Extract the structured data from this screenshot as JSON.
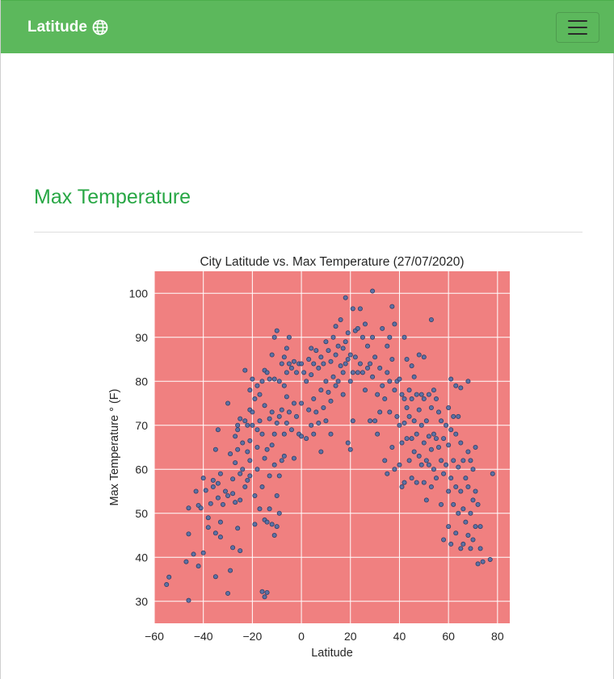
{
  "navbar": {
    "brand": "Latitude",
    "brand_icon": "globe-icon",
    "menu_icon": "hamburger-menu-icon",
    "background": "#5cb85c"
  },
  "page": {
    "heading": "Max Temperature",
    "heading_color": "#28a745"
  },
  "chart_data": {
    "type": "scatter",
    "title": "City Latitude vs. Max Temperature (27/07/2020)",
    "xlabel": "Latitude",
    "ylabel": "Max Temperature $^\\circ$ (F)",
    "ylabel_display": "Max Temperature  ° (F)",
    "xlim": [
      -60,
      85
    ],
    "ylim": [
      25,
      105
    ],
    "xticks": [
      -60,
      -40,
      -20,
      0,
      20,
      40,
      60,
      80
    ],
    "xtick_labels": [
      "−60",
      "−40",
      "−20",
      "0",
      "20",
      "40",
      "60",
      "80"
    ],
    "yticks": [
      30,
      40,
      50,
      60,
      70,
      80,
      90,
      100
    ],
    "ytick_labels": [
      "30",
      "40",
      "50",
      "60",
      "70",
      "80",
      "90",
      "100"
    ],
    "grid": true,
    "plot_background": "#f08080",
    "marker_color": "#4c6fa8",
    "marker_edge": "#2f3f66",
    "points": [
      [
        -55,
        33.8
      ],
      [
        -54,
        35.5
      ],
      [
        -47,
        39
      ],
      [
        -46,
        45.3
      ],
      [
        -46,
        30.2
      ],
      [
        -46,
        51.2
      ],
      [
        -44,
        40.7
      ],
      [
        -43,
        55
      ],
      [
        -42,
        38
      ],
      [
        -42,
        51.8
      ],
      [
        -41,
        51.2
      ],
      [
        -40,
        58
      ],
      [
        -40,
        41
      ],
      [
        -39,
        55.2
      ],
      [
        -38,
        46.8
      ],
      [
        -38,
        49
      ],
      [
        -37,
        52.2
      ],
      [
        -36,
        57.5
      ],
      [
        -36,
        56
      ],
      [
        -35,
        64.5
      ],
      [
        -35,
        35.6
      ],
      [
        -35,
        45.5
      ],
      [
        -34,
        69
      ],
      [
        -34,
        56.8
      ],
      [
        -34,
        53.5
      ],
      [
        -33,
        59
      ],
      [
        -33,
        48
      ],
      [
        -33,
        44.6
      ],
      [
        -32,
        52
      ],
      [
        -31,
        55
      ],
      [
        -30,
        54
      ],
      [
        -30,
        75
      ],
      [
        -30,
        31.8
      ],
      [
        -29,
        63.5
      ],
      [
        -29,
        37
      ],
      [
        -28,
        57.8
      ],
      [
        -28,
        54.5
      ],
      [
        -28,
        42.2
      ],
      [
        -27,
        61.5
      ],
      [
        -27,
        67.5
      ],
      [
        -27,
        52.5
      ],
      [
        -26,
        70
      ],
      [
        -26,
        69
      ],
      [
        -26,
        64.5
      ],
      [
        -26,
        46.6
      ],
      [
        -25,
        71.5
      ],
      [
        -25,
        59
      ],
      [
        -25,
        53
      ],
      [
        -25,
        41.5
      ],
      [
        -24,
        66
      ],
      [
        -24,
        60
      ],
      [
        -23,
        82.5
      ],
      [
        -23,
        71
      ],
      [
        -23,
        56
      ],
      [
        -22,
        70
      ],
      [
        -22,
        64
      ],
      [
        -22,
        57.5
      ],
      [
        -21,
        78
      ],
      [
        -21,
        73.5
      ],
      [
        -21,
        66.5
      ],
      [
        -21,
        62
      ],
      [
        -21,
        58.5
      ],
      [
        -20,
        80.5
      ],
      [
        -20,
        73
      ],
      [
        -20,
        70
      ],
      [
        -19,
        76
      ],
      [
        -19,
        54
      ],
      [
        -19,
        47.5
      ],
      [
        -18,
        79
      ],
      [
        -18,
        69
      ],
      [
        -18,
        65
      ],
      [
        -18,
        60
      ],
      [
        -17,
        77
      ],
      [
        -17,
        71
      ],
      [
        -17,
        51
      ],
      [
        -16,
        80
      ],
      [
        -16,
        68
      ],
      [
        -16,
        56
      ],
      [
        -16,
        32.2
      ],
      [
        -15,
        82.5
      ],
      [
        -15,
        74.5
      ],
      [
        -15,
        62.5
      ],
      [
        -15,
        48.5
      ],
      [
        -15,
        31
      ],
      [
        -14,
        82
      ],
      [
        -14,
        64.5
      ],
      [
        -14,
        48
      ],
      [
        -14,
        32
      ],
      [
        -13,
        80.5
      ],
      [
        -13,
        71.5
      ],
      [
        -13,
        58.5
      ],
      [
        -13,
        51
      ],
      [
        -12,
        86
      ],
      [
        -12,
        73
      ],
      [
        -12,
        65.5
      ],
      [
        -12,
        47.5
      ],
      [
        -11,
        90
      ],
      [
        -11,
        80.5
      ],
      [
        -11,
        68
      ],
      [
        -11,
        61
      ],
      [
        -11,
        45
      ],
      [
        -10,
        91.5
      ],
      [
        -10,
        70.5
      ],
      [
        -10,
        54
      ],
      [
        -10,
        47
      ],
      [
        -9,
        80
      ],
      [
        -9,
        72
      ],
      [
        -9,
        58.5
      ],
      [
        -9,
        50
      ],
      [
        -8,
        84
      ],
      [
        -8,
        73.5
      ],
      [
        -8,
        62
      ],
      [
        -7,
        85.5
      ],
      [
        -7,
        79
      ],
      [
        -7,
        68
      ],
      [
        -7,
        63
      ],
      [
        -6,
        87.5
      ],
      [
        -6,
        82
      ],
      [
        -6,
        76.5
      ],
      [
        -6,
        70.5
      ],
      [
        -5,
        90
      ],
      [
        -5,
        84
      ],
      [
        -5,
        73
      ],
      [
        -4,
        83
      ],
      [
        -4,
        69
      ],
      [
        -3,
        84.5
      ],
      [
        -3,
        75
      ],
      [
        -3,
        62.5
      ],
      [
        -2,
        82
      ],
      [
        -2,
        72
      ],
      [
        -1,
        84
      ],
      [
        -1,
        68
      ],
      [
        0,
        84
      ],
      [
        0,
        75
      ],
      [
        0,
        67.5
      ],
      [
        1,
        82
      ],
      [
        2,
        80
      ],
      [
        2,
        67
      ],
      [
        3,
        85
      ],
      [
        3,
        73.5
      ],
      [
        4,
        87.5
      ],
      [
        4,
        81.5
      ],
      [
        4,
        70
      ],
      [
        5,
        84
      ],
      [
        5,
        76
      ],
      [
        5,
        68
      ],
      [
        6,
        87
      ],
      [
        6,
        73
      ],
      [
        7,
        83
      ],
      [
        7,
        70.5
      ],
      [
        8,
        85.5
      ],
      [
        8,
        78
      ],
      [
        8,
        64
      ],
      [
        9,
        84
      ],
      [
        9,
        74
      ],
      [
        10,
        89
      ],
      [
        10,
        80
      ],
      [
        10,
        71
      ],
      [
        11,
        87
      ],
      [
        11,
        77.5
      ],
      [
        12,
        84.5
      ],
      [
        12,
        75.5
      ],
      [
        12,
        68
      ],
      [
        13,
        90
      ],
      [
        13,
        81
      ],
      [
        14,
        92.5
      ],
      [
        14,
        86
      ],
      [
        14,
        79
      ],
      [
        15,
        88
      ],
      [
        15,
        80
      ],
      [
        16,
        94
      ],
      [
        16,
        83.5
      ],
      [
        17,
        87.5
      ],
      [
        17,
        82
      ],
      [
        17,
        77
      ],
      [
        18,
        99
      ],
      [
        18,
        89
      ],
      [
        18,
        84
      ],
      [
        19,
        91
      ],
      [
        19,
        85
      ],
      [
        19,
        66
      ],
      [
        20,
        86
      ],
      [
        20,
        80
      ],
      [
        20,
        64.5
      ],
      [
        21,
        96.5
      ],
      [
        21,
        82
      ],
      [
        21,
        71
      ],
      [
        22,
        91.5
      ],
      [
        22,
        85.5
      ],
      [
        23,
        92
      ],
      [
        23,
        82
      ],
      [
        24,
        96.5
      ],
      [
        24,
        84
      ],
      [
        25,
        90
      ],
      [
        25,
        82
      ],
      [
        26,
        93
      ],
      [
        26,
        78
      ],
      [
        27,
        88
      ],
      [
        27,
        83
      ],
      [
        28,
        84
      ],
      [
        28,
        71
      ],
      [
        29,
        100.5
      ],
      [
        29,
        90
      ],
      [
        29,
        81
      ],
      [
        30,
        85.5
      ],
      [
        30,
        71
      ],
      [
        31,
        77
      ],
      [
        31,
        68
      ],
      [
        32,
        83
      ],
      [
        32,
        73
      ],
      [
        33,
        92
      ],
      [
        33,
        79
      ],
      [
        34,
        76
      ],
      [
        34,
        62
      ],
      [
        35,
        88
      ],
      [
        35,
        82
      ],
      [
        35,
        59
      ],
      [
        36,
        90
      ],
      [
        36,
        80
      ],
      [
        36,
        73
      ],
      [
        37,
        97
      ],
      [
        37,
        85
      ],
      [
        37,
        65
      ],
      [
        38,
        93
      ],
      [
        38,
        78
      ],
      [
        38,
        60
      ],
      [
        39,
        80
      ],
      [
        39,
        72
      ],
      [
        40,
        80.5
      ],
      [
        40,
        70
      ],
      [
        40,
        61
      ],
      [
        41,
        77
      ],
      [
        41,
        66
      ],
      [
        41,
        56
      ],
      [
        42,
        90
      ],
      [
        42,
        76
      ],
      [
        42,
        70.5
      ],
      [
        42,
        57
      ],
      [
        43,
        85
      ],
      [
        43,
        74
      ],
      [
        43,
        67
      ],
      [
        44,
        78
      ],
      [
        44,
        72
      ],
      [
        44,
        62
      ],
      [
        45,
        83.5
      ],
      [
        45,
        76
      ],
      [
        45,
        67
      ],
      [
        45,
        58
      ],
      [
        46,
        81
      ],
      [
        46,
        71
      ],
      [
        46,
        64
      ],
      [
        47,
        77
      ],
      [
        47,
        68
      ],
      [
        47,
        57
      ],
      [
        48,
        86
      ],
      [
        48,
        73.5
      ],
      [
        48,
        63
      ],
      [
        49,
        77
      ],
      [
        49,
        70
      ],
      [
        49,
        61
      ],
      [
        50,
        85.5
      ],
      [
        50,
        76
      ],
      [
        50,
        66
      ],
      [
        50,
        57
      ],
      [
        51,
        71
      ],
      [
        51,
        62
      ],
      [
        51,
        53
      ],
      [
        52,
        77
      ],
      [
        52,
        67.5
      ],
      [
        52,
        61
      ],
      [
        53,
        94
      ],
      [
        53,
        74
      ],
      [
        53,
        64.5
      ],
      [
        53,
        56
      ],
      [
        54,
        78
      ],
      [
        54,
        68
      ],
      [
        54,
        60
      ],
      [
        55,
        76
      ],
      [
        55,
        67
      ],
      [
        55,
        58
      ],
      [
        56,
        73
      ],
      [
        56,
        65
      ],
      [
        57,
        71
      ],
      [
        57,
        62
      ],
      [
        57,
        52
      ],
      [
        58,
        67
      ],
      [
        58,
        59
      ],
      [
        58,
        44
      ],
      [
        59,
        70
      ],
      [
        59,
        61
      ],
      [
        60,
        74
      ],
      [
        60,
        65.5
      ],
      [
        60,
        55
      ],
      [
        60,
        47
      ],
      [
        61,
        80.5
      ],
      [
        61,
        69
      ],
      [
        61,
        58
      ],
      [
        61,
        43
      ],
      [
        62,
        72
      ],
      [
        62,
        62
      ],
      [
        62,
        52
      ],
      [
        63,
        79
      ],
      [
        63,
        68
      ],
      [
        63,
        56
      ],
      [
        63,
        45.5
      ],
      [
        64,
        72
      ],
      [
        64,
        60.5
      ],
      [
        64,
        50
      ],
      [
        65,
        78.5
      ],
      [
        65,
        66
      ],
      [
        65,
        55
      ],
      [
        65,
        42
      ],
      [
        66,
        62
      ],
      [
        66,
        51
      ],
      [
        66,
        43
      ],
      [
        67,
        58
      ],
      [
        67,
        48
      ],
      [
        68,
        80
      ],
      [
        68,
        64
      ],
      [
        68,
        56
      ],
      [
        68,
        45
      ],
      [
        69,
        62
      ],
      [
        69,
        50
      ],
      [
        69,
        42
      ],
      [
        70,
        60
      ],
      [
        70,
        53
      ],
      [
        70,
        44
      ],
      [
        71,
        65
      ],
      [
        71,
        55
      ],
      [
        71,
        47
      ],
      [
        72,
        52
      ],
      [
        72,
        38.5
      ],
      [
        73,
        47
      ],
      [
        73,
        42
      ],
      [
        74,
        39
      ],
      [
        77,
        39.5
      ],
      [
        78,
        59
      ]
    ]
  }
}
